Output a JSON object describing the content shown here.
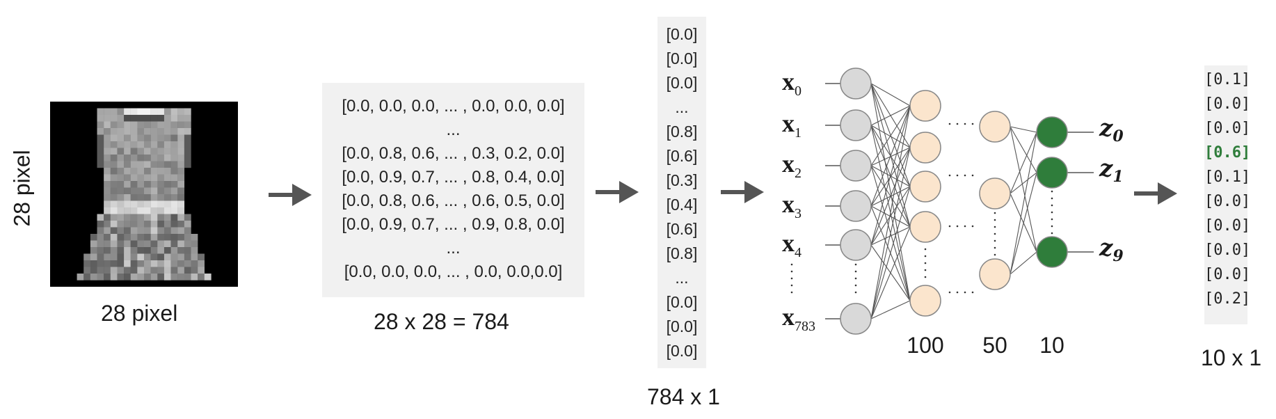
{
  "image": {
    "height_label": "28 pixel",
    "width_label": "28 pixel"
  },
  "matrix": {
    "rows": [
      "[0.0, 0.0, 0.0, ... , 0.0, 0.0, 0.0]",
      "...",
      "[0.0, 0.8, 0.6, ... , 0.3, 0.2, 0.0]",
      "[0.0, 0.9, 0.7, ... , 0.8, 0.4, 0.0]",
      "[0.0, 0.8, 0.6, ... , 0.6, 0.5, 0.0]",
      "[0.0, 0.9, 0.7, ... , 0.9, 0.8, 0.0]",
      "...",
      "[0.0, 0.0, 0.0, ... , 0.0, 0.0,0.0]"
    ],
    "caption": "28 x 28 = 784"
  },
  "vector": {
    "rows": [
      "[0.0]",
      "[0.0]",
      "[0.0]",
      "...",
      "[0.8]",
      "[0.6]",
      "[0.3]",
      "[0.4]",
      "[0.6]",
      "[0.8]",
      "...",
      "[0.0]",
      "[0.0]",
      "[0.0]"
    ],
    "caption": "784 x 1"
  },
  "network": {
    "inputs": [
      {
        "base": "x",
        "sub": "0"
      },
      {
        "base": "x",
        "sub": "1"
      },
      {
        "base": "x",
        "sub": "2"
      },
      {
        "base": "x",
        "sub": "3"
      },
      {
        "base": "x",
        "sub": "4"
      },
      {
        "base": "x",
        "sub": "783"
      }
    ],
    "outputs": [
      {
        "base": "z",
        "sub": "0"
      },
      {
        "base": "z",
        "sub": "1"
      },
      {
        "base": "z",
        "sub": "9"
      }
    ],
    "layer_sizes": [
      "100",
      "50",
      "10"
    ],
    "colors": {
      "input_node": "#d9d9d9",
      "hidden_node": "#fbe5cd",
      "output_node": "#2f7d3b",
      "edge": "#555555"
    }
  },
  "output": {
    "rows": [
      "[0.1]",
      "[0.0]",
      "[0.0]",
      "[0.6]",
      "[0.1]",
      "[0.0]",
      "[0.0]",
      "[0.0]",
      "[0.0]",
      "[0.2]"
    ],
    "highlight_index": 3,
    "highlight_color": "#2f7d3b",
    "caption": "10 x 1"
  }
}
